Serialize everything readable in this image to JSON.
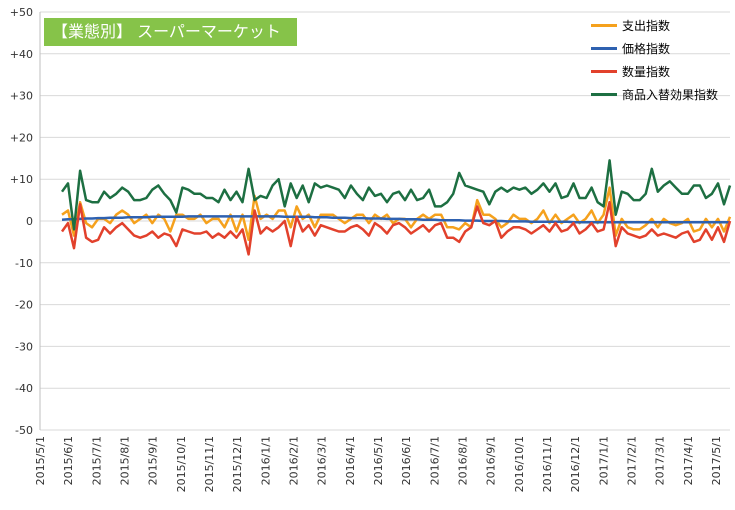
{
  "chart_data": {
    "type": "line",
    "title": "【業態別】 スーパーマーケット",
    "ylim": [
      -50,
      50
    ],
    "y_ticks": [
      "+50",
      "+40",
      "+30",
      "+20",
      "+10",
      "0",
      "-10",
      "-20",
      "-30",
      "-40",
      "-50"
    ],
    "x_ticks": [
      "2015/5/1",
      "2015/6/1",
      "2015/7/1",
      "2015/8/1",
      "2015/9/1",
      "2015/10/1",
      "2015/11/1",
      "2015/12/1",
      "2016/1/1",
      "2016/2/1",
      "2016/3/1",
      "2016/4/1",
      "2016/5/1",
      "2016/6/1",
      "2016/7/1",
      "2016/8/1",
      "2016/9/1",
      "2016/10/1",
      "2016/11/1",
      "2016/12/1",
      "2017/1/1",
      "2017/2/1",
      "2017/3/1",
      "2017/4/1",
      "2017/5/1"
    ],
    "grid": "horizontal",
    "legend_position": "top-right",
    "series": [
      {
        "name": "支出指数",
        "color": "#f5a11d",
        "values": [
          1.5,
          2.5,
          -3.5,
          4.5,
          -0.5,
          -1.5,
          0.5,
          0.5,
          -0.5,
          1.5,
          2.5,
          1.5,
          -0.5,
          0.5,
          1.5,
          -0.5,
          1.5,
          0.5,
          -2.5,
          1.5,
          1.5,
          0.5,
          0.5,
          1.5,
          -0.5,
          0.5,
          0.5,
          -1.5,
          1.5,
          -2.5,
          1.5,
          -4.5,
          6.0,
          0.5,
          1.5,
          0.5,
          2.5,
          2.5,
          -1.5,
          3.5,
          0.5,
          1.5,
          -1.5,
          1.5,
          1.5,
          1.5,
          0.5,
          -0.5,
          0.5,
          1.5,
          1.5,
          -0.5,
          1.5,
          0.5,
          1.5,
          -0.5,
          0.5,
          0.5,
          -1.5,
          0.5,
          1.5,
          0.5,
          1.5,
          1.5,
          -1.5,
          -1.5,
          -2.0,
          -0.5,
          -1.5,
          5.0,
          1.5,
          1.5,
          0.5,
          -1.5,
          -0.5,
          1.5,
          0.5,
          0.5,
          -0.5,
          0.5,
          2.5,
          -0.5,
          1.5,
          -0.5,
          0.5,
          1.5,
          -0.5,
          0.5,
          2.5,
          -0.5,
          1.5,
          8.0,
          -3.5,
          0.5,
          -1.5,
          -2.0,
          -2.0,
          -1.0,
          0.5,
          -1.5,
          0.5,
          -0.5,
          -1.0,
          -0.5,
          0.5,
          -2.5,
          -2.0,
          0.5,
          -1.5,
          0.5,
          -2.5,
          1.0
        ]
      },
      {
        "name": "価格指数",
        "color": "#2e61b0",
        "values": [
          0.3,
          0.4,
          0.4,
          0.5,
          0.6,
          0.6,
          0.7,
          0.7,
          0.8,
          0.8,
          0.8,
          0.9,
          0.9,
          0.9,
          0.9,
          1.0,
          1.0,
          1.0,
          1.0,
          1.0,
          1.0,
          1.1,
          1.1,
          1.1,
          1.1,
          1.1,
          1.1,
          1.1,
          1.1,
          1.1,
          1.1,
          1.1,
          1.1,
          1.1,
          1.1,
          1.1,
          1.1,
          1.0,
          1.0,
          1.0,
          1.0,
          1.0,
          0.9,
          0.9,
          0.9,
          0.8,
          0.8,
          0.8,
          0.7,
          0.7,
          0.7,
          0.6,
          0.6,
          0.6,
          0.5,
          0.5,
          0.5,
          0.4,
          0.4,
          0.4,
          0.3,
          0.3,
          0.3,
          0.2,
          0.2,
          0.2,
          0.2,
          0.1,
          0.1,
          0.1,
          0.0,
          0.0,
          0.0,
          0.0,
          -0.1,
          -0.1,
          -0.1,
          -0.1,
          -0.2,
          -0.2,
          -0.2,
          -0.2,
          -0.2,
          -0.2,
          -0.2,
          -0.3,
          -0.3,
          -0.3,
          -0.3,
          -0.3,
          -0.3,
          -0.3,
          -0.3,
          -0.3,
          -0.3,
          -0.3,
          -0.3,
          -0.3,
          -0.3,
          -0.3,
          -0.3,
          -0.3,
          -0.3,
          -0.3,
          -0.3,
          -0.3,
          -0.3,
          -0.3,
          -0.3,
          -0.3,
          -0.3,
          -0.3
        ]
      },
      {
        "name": "数量指数",
        "color": "#e2412c",
        "values": [
          -2.5,
          -0.5,
          -6.5,
          4.0,
          -4.0,
          -5.0,
          -4.5,
          -1.5,
          -3.0,
          -1.5,
          -0.5,
          -2.0,
          -3.5,
          -4.0,
          -3.5,
          -2.5,
          -4.0,
          -3.0,
          -3.5,
          -6.0,
          -2.0,
          -2.5,
          -3.0,
          -3.0,
          -2.5,
          -4.0,
          -3.0,
          -4.0,
          -2.5,
          -4.0,
          -2.0,
          -8.0,
          2.5,
          -3.0,
          -1.5,
          -2.5,
          -1.5,
          0.0,
          -6.0,
          1.0,
          -2.5,
          -1.0,
          -3.5,
          -1.0,
          -1.5,
          -2.0,
          -2.5,
          -2.5,
          -1.5,
          -1.0,
          -2.0,
          -3.5,
          -0.5,
          -1.5,
          -3.0,
          -1.0,
          -0.5,
          -1.5,
          -3.0,
          -2.0,
          -1.0,
          -2.5,
          -1.0,
          -0.5,
          -4.0,
          -4.0,
          -5.0,
          -2.5,
          -1.5,
          3.5,
          -0.5,
          -1.0,
          0.0,
          -4.0,
          -2.5,
          -1.5,
          -1.5,
          -2.0,
          -3.0,
          -2.0,
          -1.0,
          -2.5,
          -0.5,
          -2.5,
          -2.0,
          -0.5,
          -3.0,
          -2.0,
          -0.5,
          -2.5,
          -2.0,
          4.5,
          -6.0,
          -1.5,
          -3.0,
          -3.5,
          -4.0,
          -3.5,
          -2.0,
          -3.5,
          -3.0,
          -3.5,
          -4.0,
          -3.0,
          -2.5,
          -5.0,
          -4.5,
          -2.0,
          -4.5,
          -1.5,
          -5.0,
          0.0
        ]
      },
      {
        "name": "商品入替効果指数",
        "color": "#1d6f42",
        "values": [
          7.0,
          9.0,
          -2.0,
          12.0,
          5.0,
          4.5,
          4.5,
          7.0,
          5.5,
          6.5,
          8.0,
          7.0,
          5.0,
          5.0,
          5.5,
          7.5,
          8.5,
          6.5,
          5.0,
          2.0,
          8.0,
          7.5,
          6.5,
          6.5,
          5.5,
          5.5,
          4.5,
          7.5,
          5.0,
          7.0,
          4.5,
          12.5,
          5.0,
          6.0,
          5.5,
          8.5,
          10.0,
          3.5,
          9.0,
          5.5,
          8.5,
          4.5,
          9.0,
          8.0,
          8.5,
          8.0,
          7.5,
          5.5,
          8.5,
          6.5,
          5.0,
          8.0,
          6.0,
          6.5,
          4.5,
          6.5,
          7.0,
          5.0,
          7.5,
          5.0,
          5.5,
          7.5,
          3.5,
          3.5,
          4.5,
          6.5,
          11.5,
          8.5,
          8.0,
          7.5,
          7.0,
          4.0,
          7.0,
          8.0,
          7.0,
          8.0,
          7.5,
          8.0,
          6.5,
          7.5,
          9.0,
          7.0,
          9.0,
          5.5,
          6.0,
          9.0,
          5.5,
          5.5,
          8.0,
          4.5,
          3.5,
          14.5,
          1.5,
          7.0,
          6.5,
          5.0,
          5.0,
          6.5,
          12.5,
          7.0,
          8.5,
          9.5,
          8.0,
          6.5,
          6.5,
          8.5,
          8.5,
          5.5,
          6.5,
          9.0,
          4.0,
          8.5
        ]
      }
    ]
  }
}
